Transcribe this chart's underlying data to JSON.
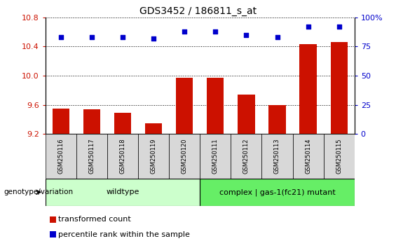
{
  "title": "GDS3452 / 186811_s_at",
  "samples": [
    "GSM250116",
    "GSM250117",
    "GSM250118",
    "GSM250119",
    "GSM250120",
    "GSM250111",
    "GSM250112",
    "GSM250113",
    "GSM250114",
    "GSM250115"
  ],
  "transformed_count": [
    9.55,
    9.54,
    9.49,
    9.35,
    9.97,
    9.97,
    9.74,
    9.6,
    10.43,
    10.46
  ],
  "percentile_rank": [
    83,
    83,
    83,
    82,
    88,
    88,
    85,
    83,
    92,
    92
  ],
  "ylim_left": [
    9.2,
    10.8
  ],
  "ylim_right": [
    0,
    100
  ],
  "yticks_left": [
    9.2,
    9.6,
    10.0,
    10.4,
    10.8
  ],
  "yticks_right": [
    0,
    25,
    50,
    75,
    100
  ],
  "bar_color": "#CC1100",
  "dot_color": "#0000CC",
  "wildtype_label": "wildtype",
  "mutant_label": "complex | gas-1(fc21) mutant",
  "wildtype_count": 5,
  "mutant_count": 5,
  "wildtype_color": "#CCFFCC",
  "mutant_color": "#66EE66",
  "legend_transformed": "transformed count",
  "legend_percentile": "percentile rank within the sample",
  "genotype_label": "genotype/variation",
  "bar_width": 0.55,
  "ylabel_left_color": "#CC1100",
  "ylabel_right_color": "#0000CC",
  "title_fontsize": 10,
  "tick_fontsize": 8,
  "sample_fontsize": 6,
  "legend_fontsize": 8,
  "geno_fontsize": 8
}
